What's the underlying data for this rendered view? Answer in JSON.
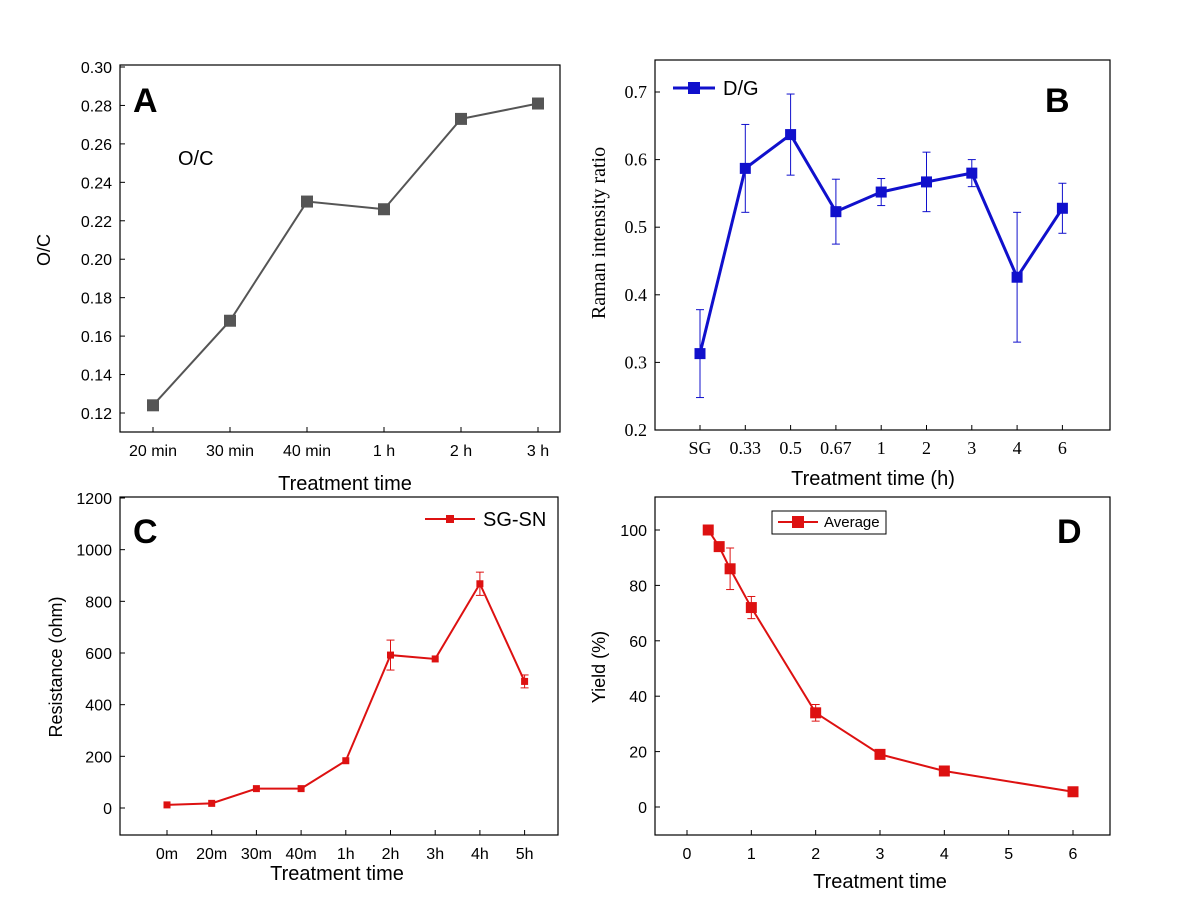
{
  "chart_data": [
    {
      "panel": "A",
      "type": "line",
      "title": "",
      "xlabel": "Treatment time",
      "ylabel": "O/C",
      "categories": [
        "20 min",
        "30 min",
        "40 min",
        "1 h",
        "2 h",
        "3 h"
      ],
      "yticks": [
        "0.12",
        "0.14",
        "0.16",
        "0.18",
        "0.20",
        "0.22",
        "0.24",
        "0.26",
        "0.28",
        "0.30"
      ],
      "ylim": [
        0.11,
        0.3
      ],
      "series": [
        {
          "name": "",
          "color": "#555555",
          "marker": "square",
          "values": [
            0.124,
            0.168,
            0.23,
            0.226,
            0.273,
            0.281
          ]
        }
      ],
      "annotations": [
        "A",
        "O/C"
      ],
      "grid": false
    },
    {
      "panel": "B",
      "type": "line",
      "title": "",
      "xlabel": "Treatment time (h)",
      "ylabel": "Raman intensity ratio",
      "categories": [
        "SG",
        "0.33",
        "0.5",
        "0.67",
        "1",
        "2",
        "3",
        "4",
        "6"
      ],
      "yticks": [
        "0.2",
        "0.3",
        "0.4",
        "0.5",
        "0.6",
        "0.7"
      ],
      "ylim": [
        0.2,
        0.75
      ],
      "series": [
        {
          "name": "D/G",
          "color": "#1010cc",
          "marker": "square",
          "values": [
            0.313,
            0.587,
            0.637,
            0.523,
            0.552,
            0.567,
            0.58,
            0.426,
            0.528
          ],
          "errors": [
            0.065,
            0.065,
            0.06,
            0.048,
            0.02,
            0.044,
            0.02,
            0.096,
            0.037
          ]
        }
      ],
      "legend": "top-left",
      "annotations": [
        "B"
      ],
      "grid": false
    },
    {
      "panel": "C",
      "type": "line",
      "title": "",
      "xlabel": "Treatment time",
      "ylabel": "Resistance (ohm)",
      "categories": [
        "0m",
        "20m",
        "30m",
        "40m",
        "1h",
        "2h",
        "3h",
        "4h",
        "5h"
      ],
      "yticks": [
        "0",
        "200",
        "400",
        "600",
        "800",
        "1000",
        "1200"
      ],
      "ylim": [
        -100,
        1200
      ],
      "series": [
        {
          "name": "SG-SN",
          "color": "#dd1111",
          "marker": "square",
          "values": [
            12,
            18,
            75,
            75,
            183,
            592,
            577,
            868,
            490
          ],
          "errors": [
            0,
            0,
            0,
            0,
            0,
            58,
            0,
            45,
            25
          ]
        }
      ],
      "legend": "top-right",
      "annotations": [
        "C"
      ],
      "grid": false
    },
    {
      "panel": "D",
      "type": "line",
      "title": "",
      "xlabel": "Treatment time",
      "ylabel": "Yield (%)",
      "xticks": [
        "0",
        "1",
        "2",
        "3",
        "4",
        "5",
        "6"
      ],
      "xlim": [
        -0.5,
        6.5
      ],
      "yticks": [
        "0",
        "20",
        "40",
        "60",
        "80",
        "100"
      ],
      "ylim": [
        -10,
        110
      ],
      "series": [
        {
          "name": "Average",
          "color": "#dd1111",
          "marker": "square",
          "x": [
            0.33,
            0.5,
            0.67,
            1,
            2,
            3,
            4,
            6
          ],
          "values": [
            100,
            94,
            86,
            72,
            34,
            19,
            13,
            5.5
          ],
          "errors": [
            0,
            0,
            7.5,
            4,
            3,
            0,
            0,
            0
          ]
        }
      ],
      "legend": "top-left",
      "annotations": [
        "D"
      ],
      "grid": false
    }
  ]
}
